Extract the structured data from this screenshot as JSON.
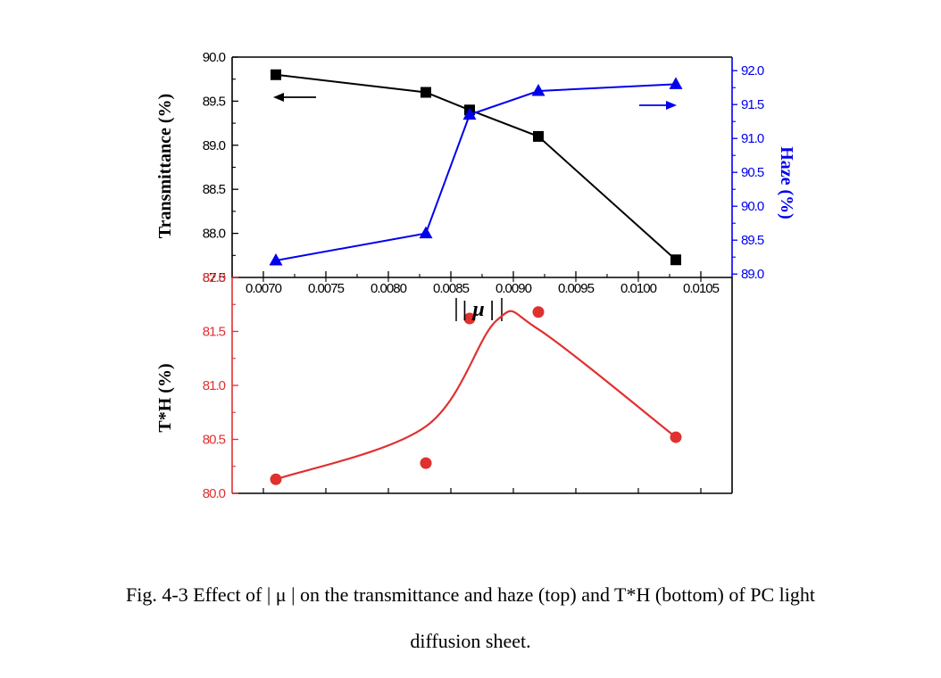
{
  "chart_data": [
    {
      "type": "line",
      "panel": "top",
      "x": [
        0.0071,
        0.0083,
        0.00865,
        0.0092,
        0.0103
      ],
      "xlabel": "| μ |",
      "xlim": [
        0.00675,
        0.01075
      ],
      "xticks": [
        "0.0070",
        "0.0075",
        "0.0080",
        "0.0085",
        "0.0090",
        "0.0095",
        "0.0100",
        "0.0105"
      ],
      "xtick_values": [
        0.007,
        0.0075,
        0.008,
        0.0085,
        0.009,
        0.0095,
        0.01,
        0.0105
      ],
      "ylabel": "Transmittance (%)",
      "ylim": [
        87.5,
        90.0
      ],
      "yticks": [
        "87.5",
        "88.0",
        "88.5",
        "89.0",
        "89.5",
        "90.0"
      ],
      "ytick_values": [
        87.5,
        88.0,
        88.5,
        89.0,
        89.5,
        90.0
      ],
      "y2label": "Haze (%)",
      "y2lim": [
        88.95,
        92.2
      ],
      "y2ticks": [
        "89.0",
        "89.5",
        "90.0",
        "90.5",
        "91.0",
        "91.5",
        "92.0"
      ],
      "y2tick_values": [
        89.0,
        89.5,
        90.0,
        90.5,
        91.0,
        91.5,
        92.0
      ],
      "series": [
        {
          "axis": "left",
          "color": "#000000",
          "marker": "square",
          "values": [
            89.8,
            89.6,
            89.4,
            89.1,
            87.7
          ]
        },
        {
          "axis": "right",
          "color": "#0000ee",
          "marker": "triangle",
          "values": [
            89.2,
            89.6,
            91.35,
            91.7,
            91.8
          ]
        }
      ],
      "annotations": [
        {
          "type": "arrow",
          "direction": "left",
          "points_to_axis": "left"
        },
        {
          "type": "arrow",
          "direction": "right",
          "points_to_axis": "right"
        }
      ]
    },
    {
      "type": "scatter",
      "panel": "bottom",
      "x": [
        0.0071,
        0.0083,
        0.00865,
        0.0092,
        0.0103
      ],
      "xlim": [
        0.00675,
        0.01075
      ],
      "ylabel": "T*H (%)",
      "ylim": [
        80.0,
        82.0
      ],
      "yticks": [
        "80.0",
        "80.5",
        "81.0",
        "81.5",
        "82.0"
      ],
      "ytick_values": [
        80.0,
        80.5,
        81.0,
        81.5,
        82.0
      ],
      "axis_color": "#e03030",
      "series": [
        {
          "color": "#e03030",
          "marker": "circle",
          "values": [
            80.13,
            80.28,
            81.62,
            81.68,
            80.52
          ],
          "fit_curve": true
        }
      ]
    }
  ],
  "caption": {
    "line1": "Fig. 4-3    Effect of | μ | on the transmittance and haze (top) and T*H (bottom) of PC light",
    "line2": "diffusion sheet."
  }
}
